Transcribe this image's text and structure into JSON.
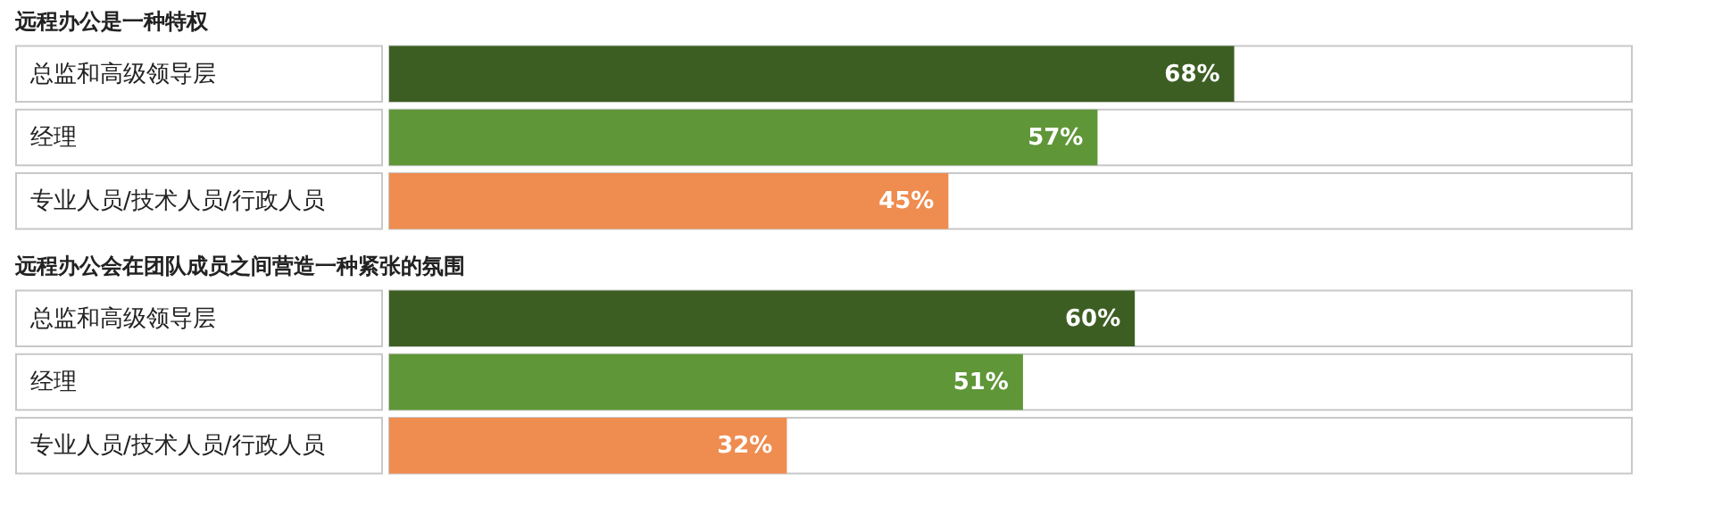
{
  "chart_data": [
    {
      "type": "bar",
      "orientation": "horizontal",
      "title": "远程办公是一种特权",
      "categories": [
        "总监和高级领导层",
        "经理",
        "专业人员/技术人员/行政人员"
      ],
      "values": [
        68,
        57,
        45
      ],
      "colors": [
        "#3d5e23",
        "#5f9637",
        "#ef8c4f"
      ],
      "xlim": [
        0,
        100
      ],
      "value_labels": [
        "68%",
        "57%",
        "45%"
      ],
      "tick_labels": "y"
    },
    {
      "type": "bar",
      "orientation": "horizontal",
      "title": "远程办公会在团队成员之间营造一种紧张的氛围",
      "categories": [
        "总监和高级领导层",
        "经理",
        "专业人员/技术人员/行政人员"
      ],
      "values": [
        60,
        51,
        32
      ],
      "colors": [
        "#3d5e23",
        "#5f9637",
        "#ef8c4f"
      ],
      "xlim": [
        0,
        100
      ],
      "value_labels": [
        "60%",
        "51%",
        "32%"
      ],
      "tick_labels": "y"
    }
  ]
}
